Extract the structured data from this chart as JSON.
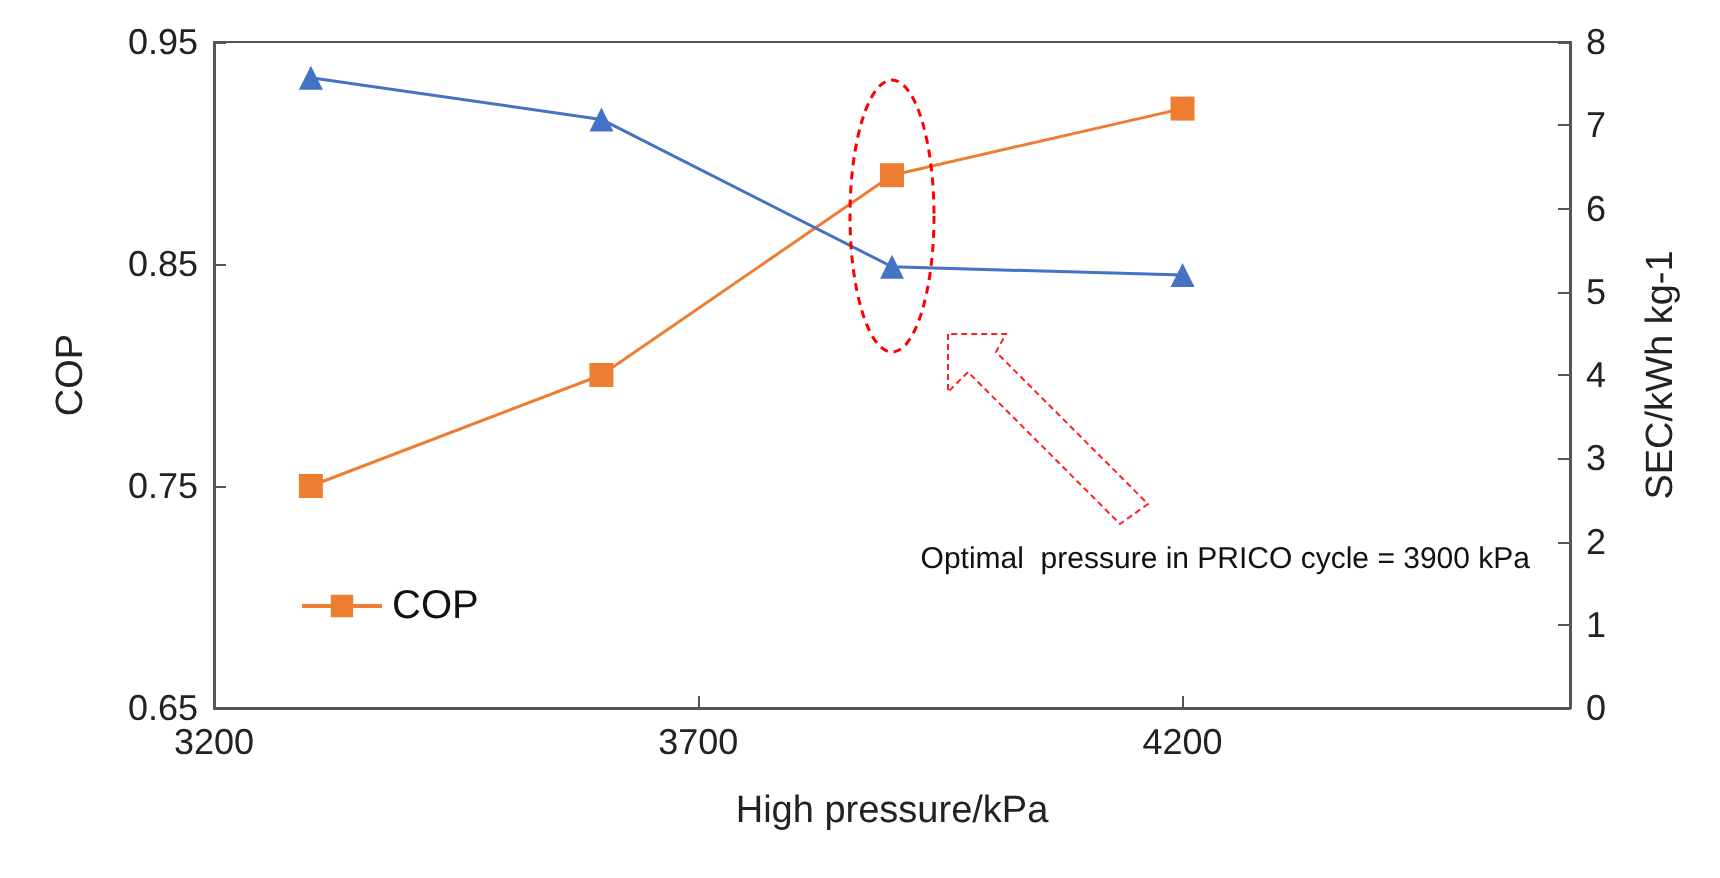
{
  "chart_data": {
    "type": "line",
    "xlabel": "High pressure/kPa",
    "ylabel": "COP",
    "y2label": "SEC/kWh kg-1",
    "x": [
      3300,
      3600,
      3900,
      4200
    ],
    "xlim": [
      3200,
      4600
    ],
    "xticks": [
      3200,
      3700,
      4200
    ],
    "ylim": [
      0.65,
      0.95
    ],
    "yticks": [
      0.65,
      0.75,
      0.85,
      0.95
    ],
    "y2lim": [
      0,
      8
    ],
    "y2ticks": [
      0,
      1,
      2,
      3,
      4,
      5,
      6,
      7,
      8
    ],
    "series": [
      {
        "name": "COP",
        "color": "#ed7d31",
        "marker": "square",
        "values": [
          0.75,
          0.8,
          0.89,
          0.92
        ]
      },
      {
        "color": "#4472c4",
        "marker": "triangle",
        "axis": "y2",
        "values": [
          7.57,
          7.07,
          5.3,
          5.2
        ]
      }
    ],
    "line_style": "solid",
    "legend": "bottom left",
    "annotations": [
      "Optimal  pressure in PRICO cycle = 3900 kPa"
    ]
  }
}
